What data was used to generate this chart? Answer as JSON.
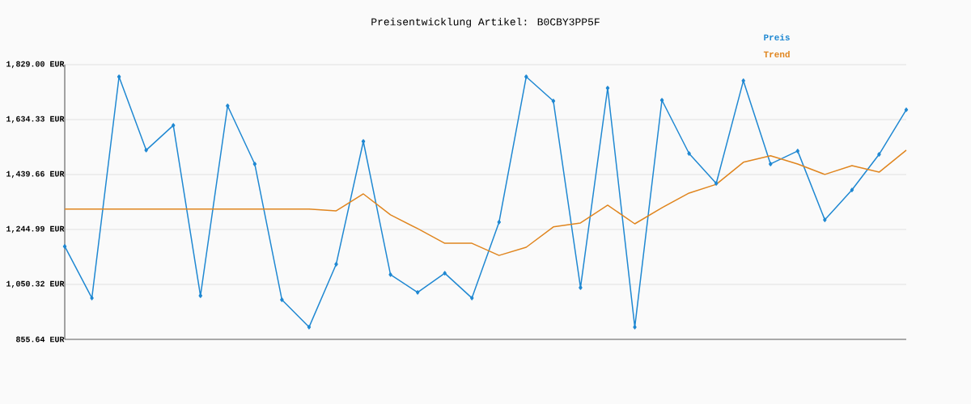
{
  "chart_data": {
    "type": "line",
    "title": "Preisentwicklung Artikel: B0CBY3PP5F",
    "categories": [
      null,
      null,
      null,
      null,
      null,
      null,
      null,
      null,
      null,
      null,
      null,
      null,
      null,
      null,
      null,
      null,
      null,
      null,
      null,
      null,
      null,
      null,
      null,
      null,
      null,
      null,
      null,
      null,
      null,
      null,
      null,
      null
    ],
    "series": [
      {
        "name": "Preis",
        "color": "#1f88d2",
        "marker": "diamond",
        "values": [
          1185,
          1002,
          1786,
          1526,
          1614,
          1010,
          1683,
          1477,
          996,
          899,
          1122,
          1557,
          1085,
          1022,
          1090,
          1002,
          1271,
          1786,
          1700,
          1039,
          1746,
          899,
          1703,
          1514,
          1408,
          1772,
          1477,
          1523,
          1279,
          1385,
          1511,
          1669
        ]
      },
      {
        "name": "Trend",
        "color": "#e0851e",
        "marker": "none",
        "values": [
          1317,
          1317,
          1317,
          1317,
          1317,
          1317,
          1317,
          1317,
          1317,
          1317,
          1311,
          1371,
          1297,
          1248,
          1196,
          1196,
          1153,
          1182,
          1254,
          1268,
          1331,
          1265,
          1322,
          1374,
          1405,
          1483,
          1506,
          1477,
          1440,
          1471,
          1448,
          1526
        ]
      }
    ],
    "ylim": [
      855.64,
      1829
    ],
    "yticks": [
      {
        "value": 855.64,
        "label": "855.64 EUR"
      },
      {
        "value": 1050.32,
        "label": "1,050.32 EUR"
      },
      {
        "value": 1244.99,
        "label": "1,244.99 EUR"
      },
      {
        "value": 1439.66,
        "label": "1,439.66 EUR"
      },
      {
        "value": 1634.33,
        "label": "1,634.33 EUR"
      },
      {
        "value": 1829,
        "label": "1,829.00 EUR"
      }
    ],
    "grid": "y",
    "legend": "top right",
    "tick_labels": "y",
    "line_style": "solid"
  }
}
